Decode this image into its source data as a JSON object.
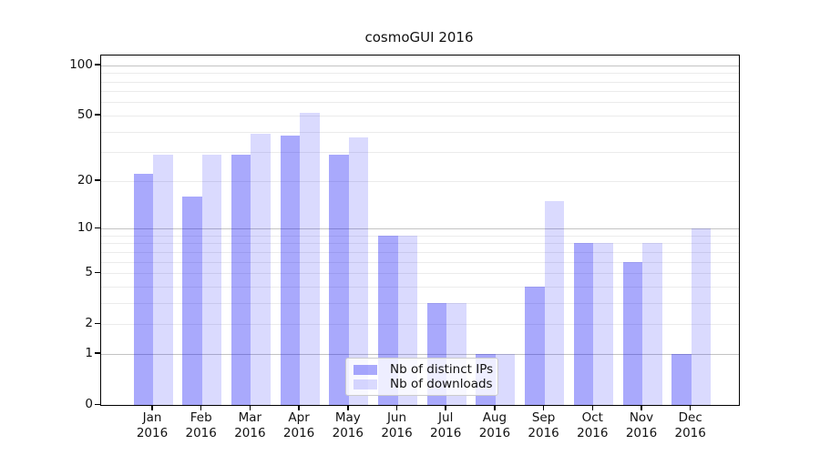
{
  "chart_data": {
    "type": "bar",
    "title": "cosmoGUI 2016",
    "xlabel": "",
    "ylabel": "",
    "yscale": "log1p",
    "ylim": [
      0,
      114.3
    ],
    "grid": true,
    "legend_position": "lower center",
    "categories": [
      {
        "month": "Jan",
        "year": "2016"
      },
      {
        "month": "Feb",
        "year": "2016"
      },
      {
        "month": "Mar",
        "year": "2016"
      },
      {
        "month": "Apr",
        "year": "2016"
      },
      {
        "month": "May",
        "year": "2016"
      },
      {
        "month": "Jun",
        "year": "2016"
      },
      {
        "month": "Jul",
        "year": "2016"
      },
      {
        "month": "Aug",
        "year": "2016"
      },
      {
        "month": "Sep",
        "year": "2016"
      },
      {
        "month": "Oct",
        "year": "2016"
      },
      {
        "month": "Nov",
        "year": "2016"
      },
      {
        "month": "Dec",
        "year": "2016"
      }
    ],
    "series": [
      {
        "name": "Nb of distinct IPs",
        "color": "rgba(10,10,245,0.35)",
        "color_hex": "#a9a9fb",
        "values": [
          22,
          16,
          29,
          38,
          29,
          9,
          3,
          1,
          4,
          8,
          6,
          1
        ]
      },
      {
        "name": "Nb of downloads",
        "color": "rgba(10,10,245,0.15)",
        "color_hex": "#dadafd",
        "values": [
          29,
          29,
          39,
          52,
          37,
          9,
          3,
          1,
          15,
          8,
          8,
          10
        ]
      }
    ],
    "y_ticks": [
      {
        "value": 100,
        "label": "100"
      },
      {
        "value": 50,
        "label": "50"
      },
      {
        "value": 20,
        "label": "20"
      },
      {
        "value": 10,
        "label": "10"
      },
      {
        "value": 5,
        "label": "5"
      },
      {
        "value": 2,
        "label": "2"
      },
      {
        "value": 1,
        "label": "1"
      },
      {
        "value": 0,
        "label": "0"
      }
    ],
    "gridlines_major": [
      1,
      10,
      100
    ],
    "gridlines_minor": [
      2,
      3,
      4,
      5,
      6,
      7,
      8,
      9,
      20,
      30,
      40,
      50,
      60,
      70,
      80,
      90
    ]
  },
  "colors": {
    "spine": "#000000",
    "grid_major": "#c3c3c3",
    "grid_minor": "#ebebeb",
    "background": "#ffffff"
  }
}
